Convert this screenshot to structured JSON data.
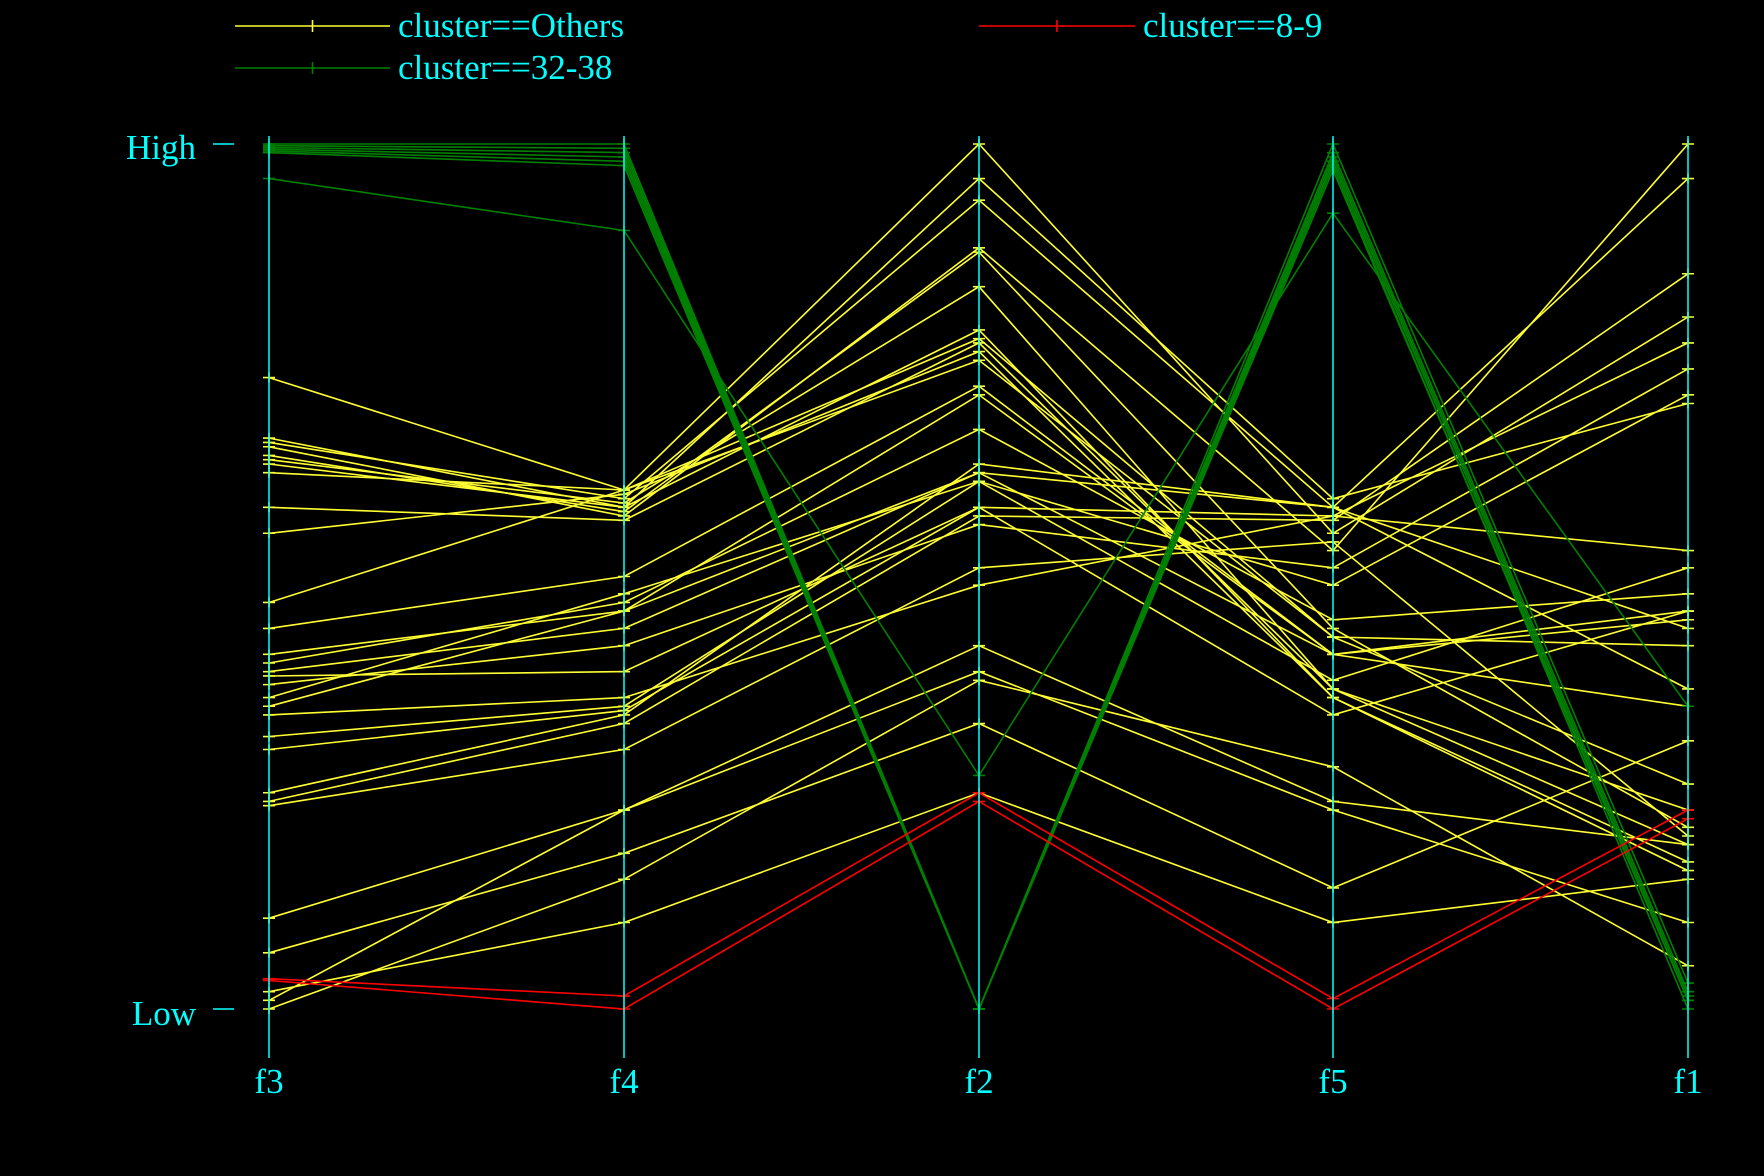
{
  "chart_data": {
    "type": "parallel-coordinates",
    "axes": [
      "f3",
      "f4",
      "f2",
      "f5",
      "f1"
    ],
    "y_tick_labels": {
      "high": "High",
      "low": "Low"
    },
    "ylim": [
      0,
      1
    ],
    "colors": {
      "background": "#000000",
      "axis": "#00ffff",
      "text": "#00ffff"
    },
    "legend": {
      "placement": "top"
    },
    "series": [
      {
        "name": "cluster==Others",
        "color": "#ffff33",
        "lines": [
          [
            0.73,
            0.6,
            1.0,
            0.55,
            0.8
          ],
          [
            0.66,
            0.58,
            0.96,
            0.59,
            0.7
          ],
          [
            0.655,
            0.59,
            0.935,
            0.58,
            0.96
          ],
          [
            0.65,
            0.57,
            0.88,
            0.53,
            1.0
          ],
          [
            0.64,
            0.575,
            0.875,
            0.44,
            0.21
          ],
          [
            0.635,
            0.585,
            0.835,
            0.37,
            0.23
          ],
          [
            0.63,
            0.58,
            0.785,
            0.36,
            0.16
          ],
          [
            0.62,
            0.6,
            0.775,
            0.43,
            0.26
          ],
          [
            0.58,
            0.565,
            0.77,
            0.37,
            0.19
          ],
          [
            0.55,
            0.595,
            0.76,
            0.36,
            0.17
          ],
          [
            0.47,
            0.6,
            0.75,
            0.43,
            0.42
          ],
          [
            0.44,
            0.5,
            0.72,
            0.41,
            0.35
          ],
          [
            0.41,
            0.46,
            0.71,
            0.41,
            0.46
          ],
          [
            0.4,
            0.47,
            0.67,
            0.45,
            0.48
          ],
          [
            0.39,
            0.44,
            0.62,
            0.58,
            0.37
          ],
          [
            0.385,
            0.39,
            0.58,
            0.57,
            0.53
          ],
          [
            0.375,
            0.42,
            0.56,
            0.51,
            0.74
          ],
          [
            0.36,
            0.48,
            0.61,
            0.49,
            0.71
          ],
          [
            0.35,
            0.46,
            0.62,
            0.41,
            0.45
          ],
          [
            0.34,
            0.36,
            0.49,
            0.57,
            0.77
          ],
          [
            0.315,
            0.35,
            0.61,
            0.38,
            0.51
          ],
          [
            0.3,
            0.345,
            0.58,
            0.34,
            0.46
          ],
          [
            0.25,
            0.34,
            0.63,
            0.58,
            0.44
          ],
          [
            0.24,
            0.33,
            0.57,
            0.565,
            0.85
          ],
          [
            0.235,
            0.3,
            0.51,
            0.54,
            0.2
          ],
          [
            0.105,
            0.23,
            0.42,
            0.24,
            0.19
          ],
          [
            0.065,
            0.18,
            0.33,
            0.14,
            0.31
          ],
          [
            0.02,
            0.1,
            0.25,
            0.1,
            0.15
          ],
          [
            0.01,
            0.23,
            0.39,
            0.23,
            0.1
          ],
          [
            0.0,
            0.15,
            0.38,
            0.28,
            0.05
          ]
        ]
      },
      {
        "name": "cluster==8-9",
        "color": "#ff0000",
        "lines": [
          [
            0.035,
            0.015,
            0.25,
            0.012,
            0.23
          ],
          [
            0.033,
            0.0,
            0.24,
            0.0,
            0.22
          ]
        ]
      },
      {
        "name": "cluster==32-38",
        "color": "#008000",
        "lines": [
          [
            1.0,
            1.0,
            0.0,
            1.0,
            0.03
          ],
          [
            0.998,
            0.995,
            0.0,
            0.99,
            0.02
          ],
          [
            0.996,
            0.99,
            0.0,
            0.985,
            0.015
          ],
          [
            0.994,
            0.985,
            0.0,
            0.98,
            0.01
          ],
          [
            0.992,
            0.98,
            0.0,
            0.975,
            0.0
          ],
          [
            0.99,
            0.975,
            0.0,
            0.97,
            0.01
          ],
          [
            0.96,
            0.9,
            0.27,
            0.92,
            0.35
          ]
        ]
      }
    ]
  }
}
